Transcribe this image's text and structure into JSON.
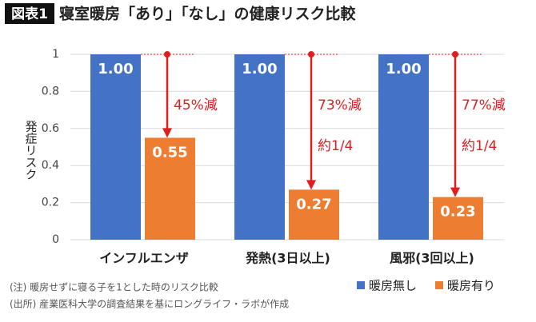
{
  "chart_data": {
    "type": "bar",
    "title_tag": "図表1",
    "title": "寝室暖房「あり」「なし」の健康リスク比較",
    "y_label": "発症リスク",
    "categories": [
      "インフルエンザ",
      "発熱(3日以上)",
      "風邪(3回以上)"
    ],
    "series": [
      {
        "name": "暖房無し",
        "color": "#4472c4",
        "values": [
          1,
          1,
          1
        ],
        "value_labels": [
          "1.00",
          "1.00",
          "1.00"
        ]
      },
      {
        "name": "暖房有り",
        "color": "#ed7d31",
        "values": [
          0.55,
          0.27,
          0.23
        ],
        "value_labels": [
          "0.55",
          "0.27",
          "0.23"
        ]
      }
    ],
    "annotations": [
      [
        "45%減"
      ],
      [
        "73%減",
        "約1/4"
      ],
      [
        "77%減",
        "約1/4"
      ]
    ],
    "annotation_color": "#e01e1e",
    "ylim": [
      0,
      1
    ],
    "yticks": [
      0,
      0.2,
      0.4,
      0.6,
      0.8,
      1
    ],
    "grid": true,
    "legend": "bottom-right",
    "notes": [
      "(注) 暖房せずに寝る子を1とした時のリスク比較",
      "(出所) 産業医科大学の調査結果を基にロングライフ・ラボが作成"
    ]
  }
}
